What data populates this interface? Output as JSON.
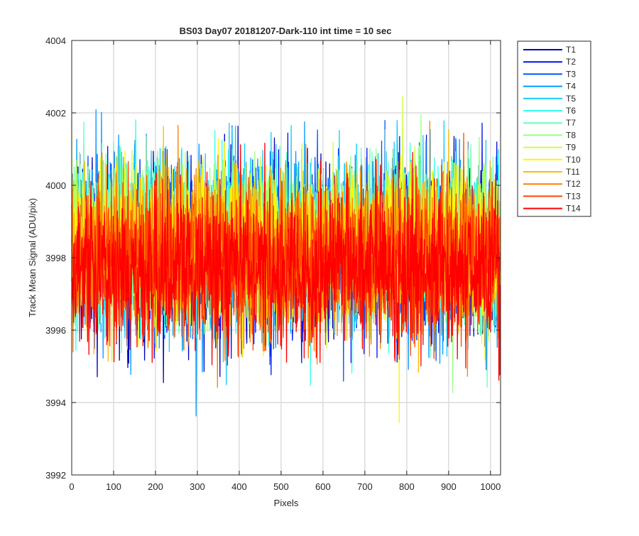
{
  "chart_data": {
    "type": "line",
    "title": "BS03 Day07 20181207-Dark-110 int time = 10 sec",
    "xlabel": "Pixels",
    "ylabel": "Track Mean Signal (ADU/pix)",
    "xlim": [
      0,
      1024
    ],
    "ylim": [
      3992,
      4004
    ],
    "xticks": [
      0,
      100,
      200,
      300,
      400,
      500,
      600,
      700,
      800,
      900,
      1000
    ],
    "yticks": [
      3992,
      3994,
      3996,
      3998,
      4000,
      4002,
      4004
    ],
    "grid": true,
    "legend_position": "outside-right",
    "points_per_series": 1024,
    "series": [
      {
        "name": "T1",
        "color": "#0000BB",
        "mean": 3998.1,
        "spread": 1.15
      },
      {
        "name": "T2",
        "color": "#0011EE",
        "mean": 3998.2,
        "spread": 1.15
      },
      {
        "name": "T3",
        "color": "#0055FF",
        "mean": 3998.3,
        "spread": 1.15
      },
      {
        "name": "T4",
        "color": "#0099FF",
        "mean": 3998.4,
        "spread": 1.15
      },
      {
        "name": "T5",
        "color": "#11CCFF",
        "mean": 3998.5,
        "spread": 1.1
      },
      {
        "name": "T6",
        "color": "#33FFEE",
        "mean": 3998.4,
        "spread": 1.1
      },
      {
        "name": "T7",
        "color": "#66FFBB",
        "mean": 3998.4,
        "spread": 1.05
      },
      {
        "name": "T8",
        "color": "#99FF88",
        "mean": 3998.5,
        "spread": 1.05
      },
      {
        "name": "T9",
        "color": "#CCFF44",
        "mean": 3998.4,
        "spread": 1.05
      },
      {
        "name": "T10",
        "color": "#FFF700",
        "mean": 3998.4,
        "spread": 1.05
      },
      {
        "name": "T11",
        "color": "#FFBB00",
        "mean": 3998.2,
        "spread": 1.05
      },
      {
        "name": "T12",
        "color": "#FF8000",
        "mean": 3998.0,
        "spread": 1.05
      },
      {
        "name": "T13",
        "color": "#FF4400",
        "mean": 3997.9,
        "spread": 1.05
      },
      {
        "name": "T14",
        "color": "#FF0000",
        "mean": 3997.7,
        "spread": 1.1
      }
    ]
  }
}
